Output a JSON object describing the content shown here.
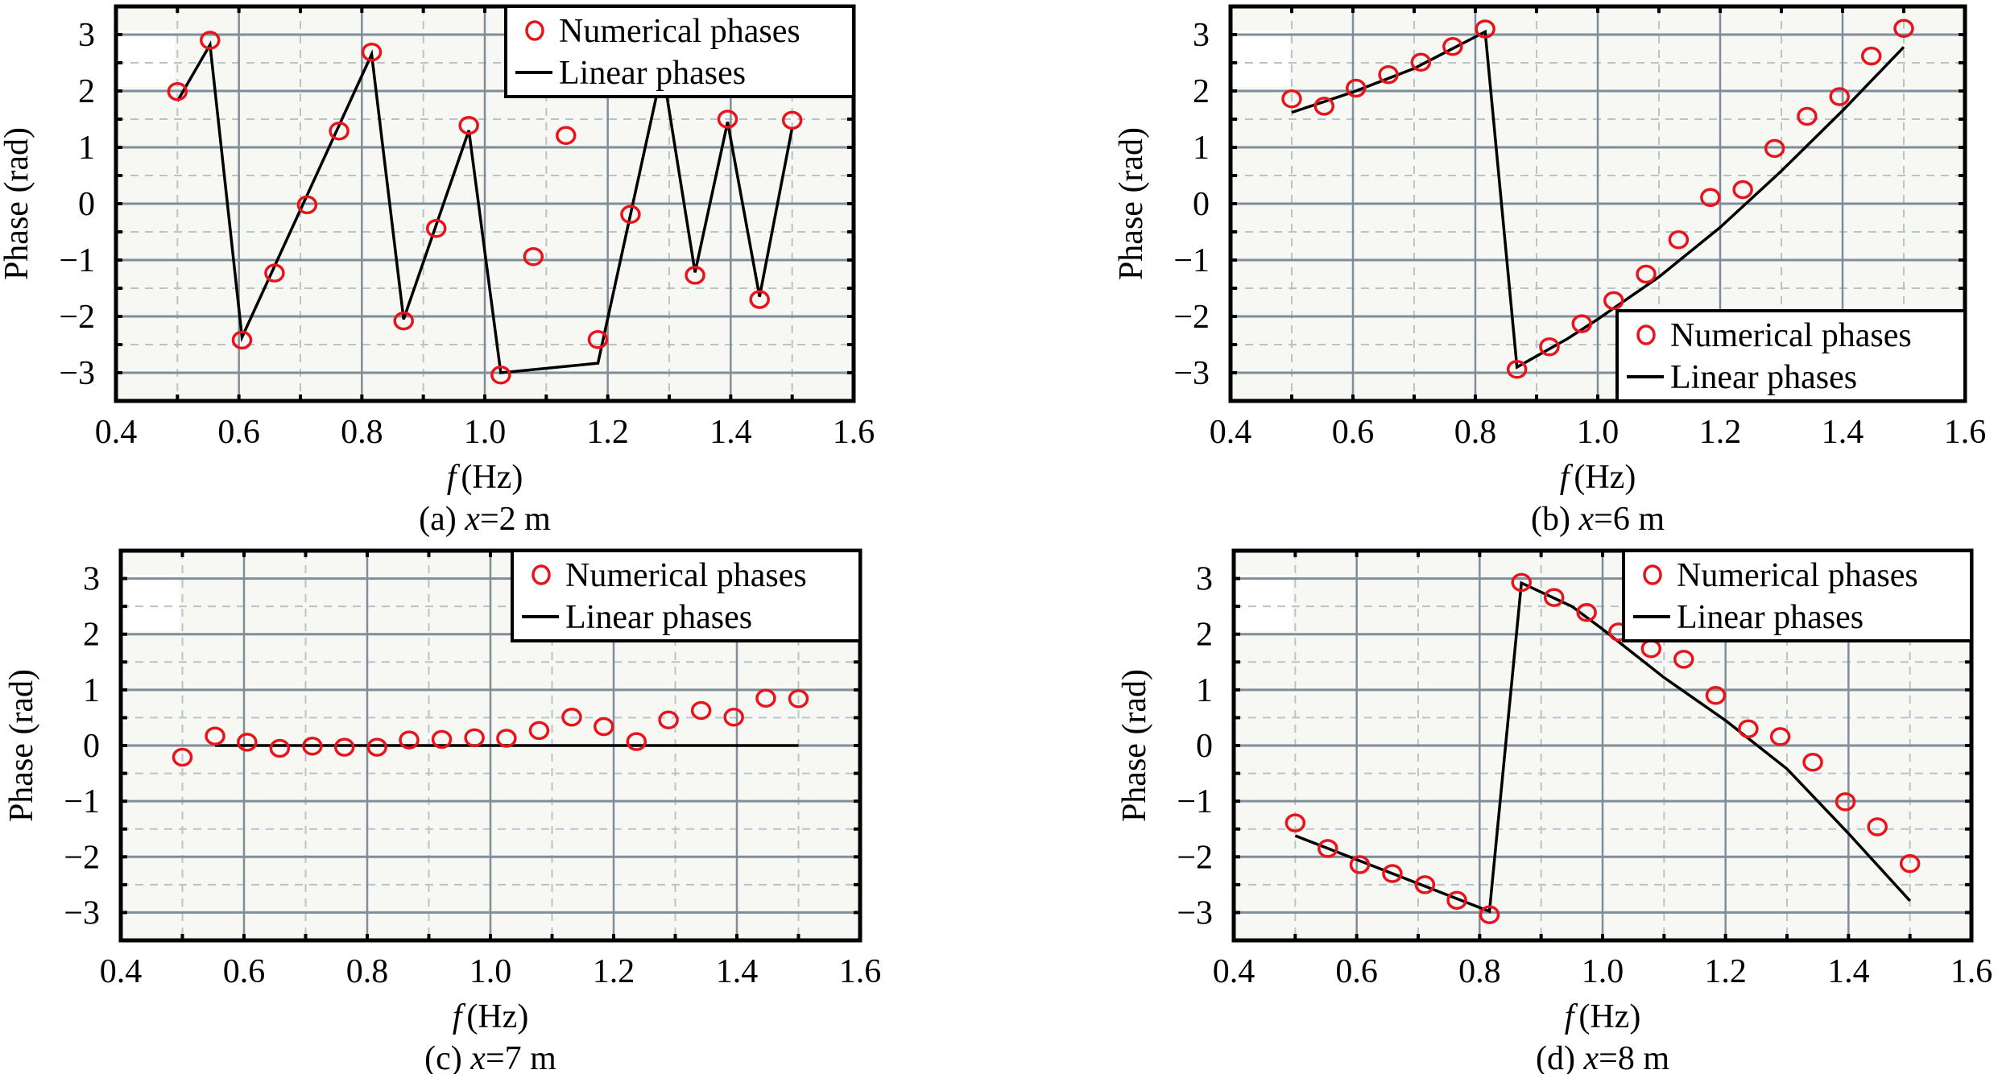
{
  "figure": {
    "panel_count": 4
  },
  "chart_data": [
    {
      "id": "a",
      "type": "line",
      "caption_prefix": "(a) ",
      "caption_var": "x",
      "caption_suffix": "=2 m",
      "xlabel_var": "f",
      "xlabel_unit": "(Hz)",
      "ylabel": "Phase (rad)",
      "xlim": [
        0.4,
        1.6
      ],
      "ylim": [
        -3.5,
        3.5
      ],
      "xticks": [
        "0.4",
        "0.6",
        "0.8",
        "1.0",
        "1.2",
        "1.4",
        "1.6"
      ],
      "xtick_values": [
        0.4,
        0.6,
        0.8,
        1.0,
        1.2,
        1.4,
        1.6
      ],
      "yticks": [
        "3",
        "2",
        "1",
        "0",
        "−1",
        "−2",
        "−3"
      ],
      "ytick_values": [
        3,
        2,
        1,
        0,
        -1,
        -2,
        -3
      ],
      "grid": true,
      "legend": {
        "position": "top-right",
        "entries": [
          "Numerical phases",
          "Linear phases"
        ]
      },
      "series": [
        {
          "name": "Numerical phases",
          "kind": "scatter",
          "color": "#e8141c",
          "x": [
            0.5,
            0.553,
            0.605,
            0.658,
            0.711,
            0.763,
            0.816,
            0.868,
            0.921,
            0.974,
            1.026,
            1.079,
            1.132,
            1.184,
            1.237,
            1.289,
            1.342,
            1.395,
            1.447,
            1.5
          ],
          "y": [
            1.99,
            2.9,
            -2.42,
            -1.23,
            -0.02,
            1.29,
            2.69,
            -2.08,
            -0.44,
            1.39,
            -3.04,
            -0.94,
            1.21,
            -2.41,
            -0.19,
            2.4,
            -1.27,
            1.5,
            -1.7,
            1.48
          ]
        },
        {
          "name": "Linear phases",
          "kind": "line",
          "color": "#000000",
          "x": [
            0.5,
            0.553,
            0.605,
            0.816,
            0.868,
            0.974,
            1.026,
            1.184,
            1.289,
            1.342,
            1.395,
            1.447,
            1.5
          ],
          "y": [
            1.82,
            2.82,
            -2.37,
            2.65,
            -2.05,
            1.3,
            -3.0,
            -2.83,
            2.4,
            -1.22,
            1.45,
            -1.65,
            1.35
          ]
        }
      ]
    },
    {
      "id": "b",
      "type": "line",
      "caption_prefix": "(b) ",
      "caption_var": "x",
      "caption_suffix": "=6 m",
      "xlabel_var": "f",
      "xlabel_unit": "(Hz)",
      "ylabel": "Phase (rad)",
      "xlim": [
        0.4,
        1.6
      ],
      "ylim": [
        -3.5,
        3.5
      ],
      "xticks": [
        "0.4",
        "0.6",
        "0.8",
        "1.0",
        "1.2",
        "1.4",
        "1.6"
      ],
      "xtick_values": [
        0.4,
        0.6,
        0.8,
        1.0,
        1.2,
        1.4,
        1.6
      ],
      "yticks": [
        "3",
        "2",
        "1",
        "0",
        "−1",
        "−2",
        "−3"
      ],
      "ytick_values": [
        3,
        2,
        1,
        0,
        -1,
        -2,
        -3
      ],
      "grid": true,
      "legend": {
        "position": "bottom-right",
        "entries": [
          "Numerical phases",
          "Linear phases"
        ]
      },
      "series": [
        {
          "name": "Numerical phases",
          "kind": "scatter",
          "color": "#e8141c",
          "x": [
            0.5,
            0.553,
            0.605,
            0.658,
            0.711,
            0.763,
            0.816,
            0.868,
            0.921,
            0.974,
            1.026,
            1.079,
            1.132,
            1.184,
            1.237,
            1.289,
            1.342,
            1.395,
            1.447,
            1.5
          ],
          "y": [
            1.86,
            1.73,
            2.05,
            2.29,
            2.51,
            2.79,
            3.1,
            -2.94,
            -2.54,
            -2.13,
            -1.72,
            -1.25,
            -0.64,
            0.11,
            0.25,
            0.98,
            1.55,
            1.9,
            2.62,
            3.11
          ]
        },
        {
          "name": "Linear phases",
          "kind": "line",
          "color": "#000000",
          "x": [
            0.5,
            0.6,
            0.7,
            0.816,
            0.868,
            0.95,
            1.0,
            1.1,
            1.2,
            1.3,
            1.4,
            1.5
          ],
          "y": [
            1.62,
            1.98,
            2.4,
            3.05,
            -2.9,
            -2.4,
            -2.05,
            -1.3,
            -0.42,
            0.58,
            1.65,
            2.78
          ]
        }
      ]
    },
    {
      "id": "c",
      "type": "line",
      "caption_prefix": "(c) ",
      "caption_var": "x",
      "caption_suffix": "=7 m",
      "xlabel_var": "f",
      "xlabel_unit": "(Hz)",
      "ylabel": "Phase (rad)",
      "xlim": [
        0.4,
        1.6
      ],
      "ylim": [
        -3.5,
        3.5
      ],
      "xticks": [
        "0.4",
        "0.6",
        "0.8",
        "1.0",
        "1.2",
        "1.4",
        "1.6"
      ],
      "xtick_values": [
        0.4,
        0.6,
        0.8,
        1.0,
        1.2,
        1.4,
        1.6
      ],
      "yticks": [
        "3",
        "2",
        "1",
        "0",
        "−1",
        "−2",
        "−3"
      ],
      "ytick_values": [
        3,
        2,
        1,
        0,
        -1,
        -2,
        -3
      ],
      "grid": true,
      "legend": {
        "position": "top-right",
        "entries": [
          "Numerical phases",
          "Linear phases"
        ]
      },
      "series": [
        {
          "name": "Numerical phases",
          "kind": "scatter",
          "color": "#e8141c",
          "x": [
            0.5,
            0.553,
            0.605,
            0.658,
            0.711,
            0.763,
            0.816,
            0.868,
            0.921,
            0.974,
            1.026,
            1.079,
            1.132,
            1.184,
            1.237,
            1.289,
            1.342,
            1.395,
            1.447,
            1.5
          ],
          "y": [
            -0.21,
            0.17,
            0.06,
            -0.05,
            -0.01,
            -0.03,
            -0.03,
            0.1,
            0.11,
            0.14,
            0.13,
            0.27,
            0.51,
            0.34,
            0.07,
            0.46,
            0.63,
            0.51,
            0.85,
            0.84
          ]
        },
        {
          "name": "Linear phases",
          "kind": "line",
          "color": "#000000",
          "x": [
            0.553,
            1.5
          ],
          "y": [
            0.0,
            0.0
          ]
        }
      ]
    },
    {
      "id": "d",
      "type": "line",
      "caption_prefix": "(d) ",
      "caption_var": "x",
      "caption_suffix": "=8 m",
      "xlabel_var": "f",
      "xlabel_unit": "(Hz)",
      "ylabel": "Phase (rad)",
      "xlim": [
        0.4,
        1.6
      ],
      "ylim": [
        -3.5,
        3.5
      ],
      "xticks": [
        "0.4",
        "0.6",
        "0.8",
        "1.0",
        "1.2",
        "1.4",
        "1.6"
      ],
      "xtick_values": [
        0.4,
        0.6,
        0.8,
        1.0,
        1.2,
        1.4,
        1.6
      ],
      "yticks": [
        "3",
        "2",
        "1",
        "0",
        "−1",
        "−2",
        "−3"
      ],
      "ytick_values": [
        3,
        2,
        1,
        0,
        -1,
        -2,
        -3
      ],
      "grid": true,
      "legend": {
        "position": "top-right",
        "entries": [
          "Numerical phases",
          "Linear phases"
        ]
      },
      "series": [
        {
          "name": "Numerical phases",
          "kind": "scatter",
          "color": "#e8141c",
          "x": [
            0.5,
            0.553,
            0.605,
            0.658,
            0.711,
            0.763,
            0.816,
            0.868,
            0.921,
            0.974,
            1.026,
            1.079,
            1.132,
            1.184,
            1.237,
            1.289,
            1.342,
            1.395,
            1.447,
            1.5
          ],
          "y": [
            -1.39,
            -1.85,
            -2.14,
            -2.3,
            -2.5,
            -2.78,
            -3.04,
            2.93,
            2.66,
            2.39,
            2.04,
            1.74,
            1.55,
            0.9,
            0.3,
            0.16,
            -0.3,
            -1.01,
            -1.46,
            -2.12
          ]
        },
        {
          "name": "Linear phases",
          "kind": "line",
          "color": "#000000",
          "x": [
            0.5,
            0.816,
            0.868,
            0.95,
            1.0,
            1.1,
            1.2,
            1.3,
            1.4,
            1.5
          ],
          "y": [
            -1.62,
            -2.98,
            2.92,
            2.5,
            2.09,
            1.22,
            0.45,
            -0.42,
            -1.58,
            -2.79
          ]
        }
      ]
    }
  ]
}
